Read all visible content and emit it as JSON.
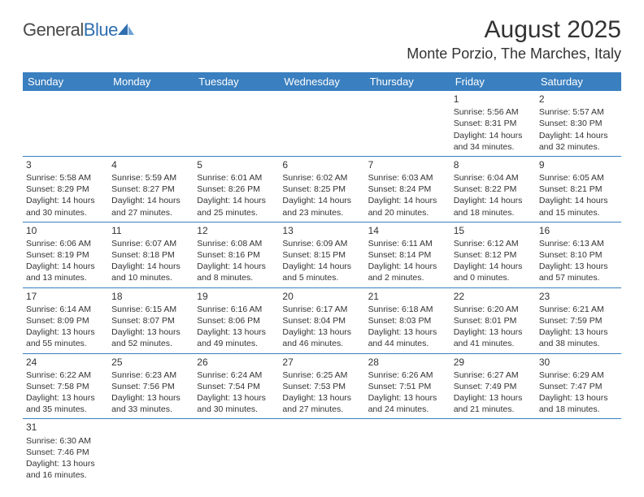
{
  "logo": {
    "part1": "General",
    "part2": "Blue"
  },
  "title": "August 2025",
  "location": "Monte Porzio, The Marches, Italy",
  "colors": {
    "header_bg": "#3a7fbf",
    "header_text": "#ffffff",
    "cell_border": "#3a7fbf",
    "text": "#333333",
    "logo_blue": "#2f6fb0"
  },
  "weekdays": [
    "Sunday",
    "Monday",
    "Tuesday",
    "Wednesday",
    "Thursday",
    "Friday",
    "Saturday"
  ],
  "days": {
    "1": {
      "sunrise": "5:56 AM",
      "sunset": "8:31 PM",
      "daylight": "14 hours and 34 minutes."
    },
    "2": {
      "sunrise": "5:57 AM",
      "sunset": "8:30 PM",
      "daylight": "14 hours and 32 minutes."
    },
    "3": {
      "sunrise": "5:58 AM",
      "sunset": "8:29 PM",
      "daylight": "14 hours and 30 minutes."
    },
    "4": {
      "sunrise": "5:59 AM",
      "sunset": "8:27 PM",
      "daylight": "14 hours and 27 minutes."
    },
    "5": {
      "sunrise": "6:01 AM",
      "sunset": "8:26 PM",
      "daylight": "14 hours and 25 minutes."
    },
    "6": {
      "sunrise": "6:02 AM",
      "sunset": "8:25 PM",
      "daylight": "14 hours and 23 minutes."
    },
    "7": {
      "sunrise": "6:03 AM",
      "sunset": "8:24 PM",
      "daylight": "14 hours and 20 minutes."
    },
    "8": {
      "sunrise": "6:04 AM",
      "sunset": "8:22 PM",
      "daylight": "14 hours and 18 minutes."
    },
    "9": {
      "sunrise": "6:05 AM",
      "sunset": "8:21 PM",
      "daylight": "14 hours and 15 minutes."
    },
    "10": {
      "sunrise": "6:06 AM",
      "sunset": "8:19 PM",
      "daylight": "14 hours and 13 minutes."
    },
    "11": {
      "sunrise": "6:07 AM",
      "sunset": "8:18 PM",
      "daylight": "14 hours and 10 minutes."
    },
    "12": {
      "sunrise": "6:08 AM",
      "sunset": "8:16 PM",
      "daylight": "14 hours and 8 minutes."
    },
    "13": {
      "sunrise": "6:09 AM",
      "sunset": "8:15 PM",
      "daylight": "14 hours and 5 minutes."
    },
    "14": {
      "sunrise": "6:11 AM",
      "sunset": "8:14 PM",
      "daylight": "14 hours and 2 minutes."
    },
    "15": {
      "sunrise": "6:12 AM",
      "sunset": "8:12 PM",
      "daylight": "14 hours and 0 minutes."
    },
    "16": {
      "sunrise": "6:13 AM",
      "sunset": "8:10 PM",
      "daylight": "13 hours and 57 minutes."
    },
    "17": {
      "sunrise": "6:14 AM",
      "sunset": "8:09 PM",
      "daylight": "13 hours and 55 minutes."
    },
    "18": {
      "sunrise": "6:15 AM",
      "sunset": "8:07 PM",
      "daylight": "13 hours and 52 minutes."
    },
    "19": {
      "sunrise": "6:16 AM",
      "sunset": "8:06 PM",
      "daylight": "13 hours and 49 minutes."
    },
    "20": {
      "sunrise": "6:17 AM",
      "sunset": "8:04 PM",
      "daylight": "13 hours and 46 minutes."
    },
    "21": {
      "sunrise": "6:18 AM",
      "sunset": "8:03 PM",
      "daylight": "13 hours and 44 minutes."
    },
    "22": {
      "sunrise": "6:20 AM",
      "sunset": "8:01 PM",
      "daylight": "13 hours and 41 minutes."
    },
    "23": {
      "sunrise": "6:21 AM",
      "sunset": "7:59 PM",
      "daylight": "13 hours and 38 minutes."
    },
    "24": {
      "sunrise": "6:22 AM",
      "sunset": "7:58 PM",
      "daylight": "13 hours and 35 minutes."
    },
    "25": {
      "sunrise": "6:23 AM",
      "sunset": "7:56 PM",
      "daylight": "13 hours and 33 minutes."
    },
    "26": {
      "sunrise": "6:24 AM",
      "sunset": "7:54 PM",
      "daylight": "13 hours and 30 minutes."
    },
    "27": {
      "sunrise": "6:25 AM",
      "sunset": "7:53 PM",
      "daylight": "13 hours and 27 minutes."
    },
    "28": {
      "sunrise": "6:26 AM",
      "sunset": "7:51 PM",
      "daylight": "13 hours and 24 minutes."
    },
    "29": {
      "sunrise": "6:27 AM",
      "sunset": "7:49 PM",
      "daylight": "13 hours and 21 minutes."
    },
    "30": {
      "sunrise": "6:29 AM",
      "sunset": "7:47 PM",
      "daylight": "13 hours and 18 minutes."
    },
    "31": {
      "sunrise": "6:30 AM",
      "sunset": "7:46 PM",
      "daylight": "13 hours and 16 minutes."
    }
  },
  "labels": {
    "sunrise": "Sunrise:",
    "sunset": "Sunset:",
    "daylight": "Daylight:"
  },
  "grid": [
    [
      null,
      null,
      null,
      null,
      null,
      "1",
      "2"
    ],
    [
      "3",
      "4",
      "5",
      "6",
      "7",
      "8",
      "9"
    ],
    [
      "10",
      "11",
      "12",
      "13",
      "14",
      "15",
      "16"
    ],
    [
      "17",
      "18",
      "19",
      "20",
      "21",
      "22",
      "23"
    ],
    [
      "24",
      "25",
      "26",
      "27",
      "28",
      "29",
      "30"
    ],
    [
      "31",
      null,
      null,
      null,
      null,
      null,
      null
    ]
  ]
}
